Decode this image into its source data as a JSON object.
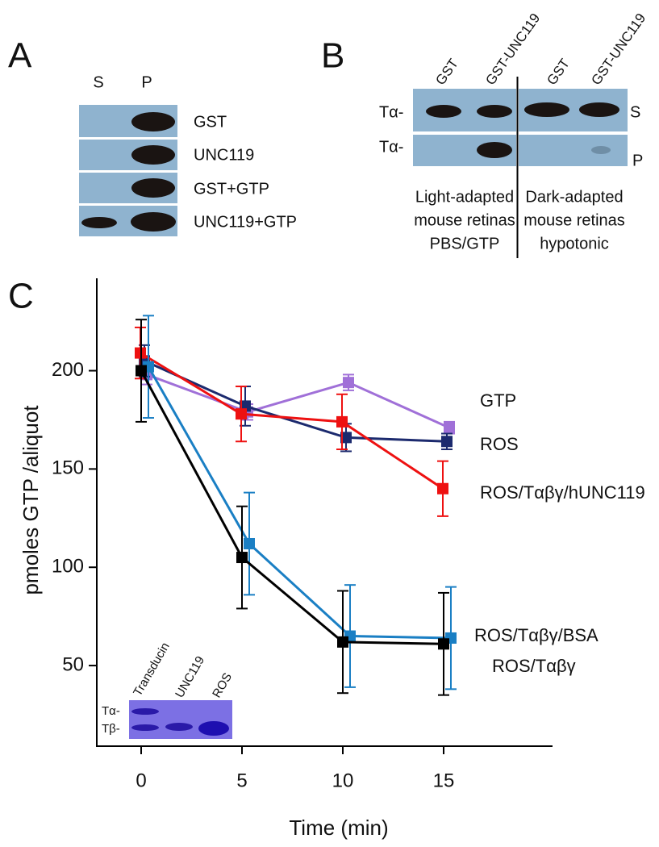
{
  "panel_a": {
    "label": "A",
    "columns": [
      "S",
      "P"
    ],
    "rows": [
      "GST",
      "UNC119",
      "GST+GTP",
      "UNC119+GTP"
    ]
  },
  "panel_b": {
    "label": "B",
    "lanes": [
      "GST",
      "GST-UNC119",
      "GST",
      "GST-UNC119"
    ],
    "row_labels": [
      "Tα-",
      "Tα-"
    ],
    "fractions": [
      "S",
      "P"
    ],
    "conditions": [
      [
        "Light-adapted",
        "mouse retinas",
        "PBS/GTP"
      ],
      [
        "Dark-adapted",
        "mouse retinas",
        "hypotonic"
      ]
    ]
  },
  "inset": {
    "lanes": [
      "Transducin",
      "UNC119",
      "ROS"
    ],
    "bands": [
      "Tα-",
      "Tβ-"
    ]
  },
  "chart_data": {
    "type": "line",
    "panel_label": "C",
    "x_label": "Time (min)",
    "y_label": "pmoles GTP /aliquot",
    "x": [
      0,
      5,
      10,
      15
    ],
    "xlim": [
      -2.2,
      20.4
    ],
    "xticks": [
      0,
      5,
      10,
      15
    ],
    "ylim": [
      9,
      247
    ],
    "yticks": [
      50,
      100,
      150,
      200
    ],
    "series": [
      {
        "name": "GTP",
        "color": "#a070d8",
        "values": [
          198,
          179,
          194,
          171
        ],
        "errors": [
          5,
          4,
          4,
          3
        ]
      },
      {
        "name": "ROS",
        "color": "#1c2a6e",
        "values": [
          205,
          182,
          166,
          164
        ],
        "errors": [
          8,
          10,
          7,
          4
        ]
      },
      {
        "name": "ROS/Tαβγ/hUNC119",
        "color": "#ee1111",
        "values": [
          209,
          178,
          174,
          140
        ],
        "errors": [
          13,
          14,
          14,
          14
        ]
      },
      {
        "name": "ROS/Tαβγ/BSA",
        "color": "#1a7fc4",
        "values": [
          202,
          112,
          65,
          64
        ],
        "errors": [
          26,
          26,
          26,
          26
        ]
      },
      {
        "name": "ROS/Tαβγ",
        "color": "#000000",
        "values": [
          200,
          105,
          62,
          61
        ],
        "errors": [
          26,
          26,
          26,
          26
        ]
      }
    ]
  }
}
